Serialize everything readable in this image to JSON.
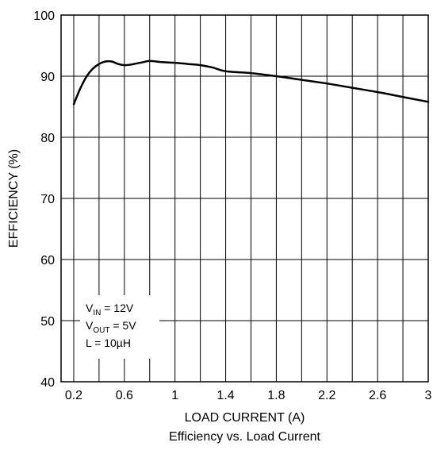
{
  "chart_data": {
    "type": "line",
    "title": "",
    "subtitle": "",
    "caption": "Efficiency vs. Load Current",
    "xlabel": "LOAD CURRENT (A)",
    "ylabel": "EFFICIENCY (%)",
    "xlim": [
      0.1,
      3.0
    ],
    "ylim": [
      40,
      100
    ],
    "grid": true,
    "xticks": [
      0.2,
      0.6,
      1.0,
      1.4,
      1.8,
      2.2,
      2.6,
      3.0
    ],
    "xtick_labels": [
      "0.2",
      "0.6",
      "1",
      "1.4",
      "1.8",
      "2.2",
      "2.6",
      "3"
    ],
    "yticks": [
      40,
      50,
      60,
      70,
      80,
      90,
      100
    ],
    "ytick_labels": [
      "40",
      "50",
      "60",
      "70",
      "80",
      "90",
      "100"
    ],
    "series": [
      {
        "name": "",
        "color": "#000000",
        "x": [
          0.2,
          0.25,
          0.3,
          0.35,
          0.4,
          0.45,
          0.5,
          0.55,
          0.6,
          0.65,
          0.7,
          0.75,
          0.8,
          0.9,
          1.0,
          1.1,
          1.2,
          1.3,
          1.4,
          1.6,
          1.8,
          2.0,
          2.2,
          2.4,
          2.6,
          2.8,
          3.0
        ],
        "y": [
          85.4,
          87.9,
          89.9,
          91.2,
          92.0,
          92.4,
          92.4,
          92.0,
          91.8,
          91.9,
          92.1,
          92.3,
          92.5,
          92.3,
          92.2,
          92.0,
          91.8,
          91.4,
          90.8,
          90.5,
          90.0,
          89.4,
          88.8,
          88.1,
          87.4,
          86.6,
          85.8
        ]
      }
    ],
    "annotation": {
      "lines": [
        {
          "main": "V",
          "sub": "IN",
          "rest": " = 12V"
        },
        {
          "main": "V",
          "sub": "OUT",
          "rest": " = 5V"
        },
        {
          "main": "L = 10",
          "sub": "",
          "rest": "µH"
        }
      ]
    }
  }
}
